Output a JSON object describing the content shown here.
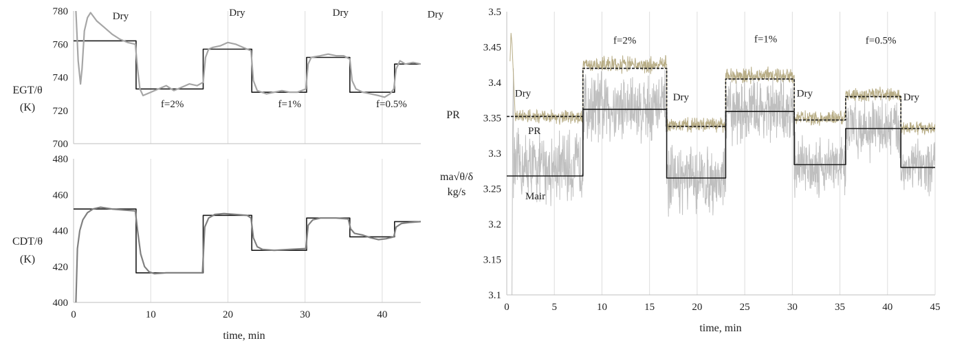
{
  "chart_data": [
    {
      "type": "line",
      "panel": "top-left",
      "ylabel": "EGT/θ",
      "ylabel_unit": "(K)",
      "xlim": [
        0,
        45
      ],
      "ylim": [
        700,
        780
      ],
      "yticks": [
        700,
        720,
        740,
        760,
        780
      ],
      "xticks": [],
      "grid": "vertical",
      "series": [
        {
          "role": "model-step",
          "color": "#1a1a1a",
          "x": [
            0,
            8.1,
            8.1,
            16.8,
            16.8,
            23.1,
            23.1,
            30.2,
            30.2,
            35.8,
            35.8,
            41.6,
            41.6,
            45
          ],
          "y": [
            762,
            762,
            733,
            733,
            757,
            757,
            731,
            731,
            752,
            752,
            731,
            731,
            748,
            748
          ]
        },
        {
          "role": "measured",
          "color": "#a6a6a6",
          "x": [
            0.3,
            0.6,
            0.9,
            1.1,
            1.4,
            1.8,
            2.2,
            3,
            4,
            5,
            6,
            7,
            8,
            8.3,
            8.6,
            9,
            10,
            11,
            12,
            13,
            14,
            15,
            16,
            16.8,
            17.1,
            17.5,
            18,
            19,
            20,
            21,
            22,
            23,
            23.3,
            23.8,
            25,
            26,
            27,
            28,
            29,
            30.1,
            30.4,
            30.8,
            32,
            33,
            34,
            35,
            35.8,
            36.1,
            36.6,
            37.5,
            38.5,
            39.5,
            40.3,
            41,
            41.5,
            41.8,
            42.3,
            43,
            44,
            45
          ],
          "y": [
            780,
            750,
            736,
            745,
            768,
            776,
            779,
            774,
            770,
            766,
            763,
            761,
            760,
            745,
            733,
            729,
            731,
            733,
            735,
            732,
            734,
            736,
            735,
            737,
            752,
            757,
            758,
            759,
            761,
            760,
            758,
            756,
            738,
            732,
            730,
            731,
            732,
            731,
            731,
            733,
            748,
            752,
            753,
            754,
            753,
            753,
            751,
            738,
            733,
            731,
            730,
            729,
            728,
            730,
            733,
            745,
            750,
            748,
            749,
            748
          ]
        }
      ],
      "annotations": [
        {
          "text": "Dry",
          "x": 6.1,
          "y": 775
        },
        {
          "text": "f=2%",
          "x": 12.8,
          "y": 722
        },
        {
          "text": "Dry",
          "x": 21.2,
          "y": 777
        },
        {
          "text": "f=1%",
          "x": 28.0,
          "y": 722
        },
        {
          "text": "Dry",
          "x": 34.6,
          "y": 777
        },
        {
          "text": "f=0.5%",
          "x": 41.2,
          "y": 722
        },
        {
          "text": "Dry",
          "x": 46.9,
          "y": 776
        }
      ]
    },
    {
      "type": "line",
      "panel": "bottom-left",
      "ylabel": "CDT/θ",
      "ylabel_unit": "(K)",
      "xlabel": "time, min",
      "xlim": [
        0,
        45
      ],
      "ylim": [
        400,
        480
      ],
      "yticks": [
        400,
        420,
        440,
        460,
        480
      ],
      "xticks": [
        0,
        10,
        20,
        30,
        40
      ],
      "grid": "vertical",
      "series": [
        {
          "role": "model-step",
          "color": "#1a1a1a",
          "x": [
            0,
            8.1,
            8.1,
            16.8,
            16.8,
            23.1,
            23.1,
            30.2,
            30.2,
            35.8,
            35.8,
            41.6,
            41.6,
            45
          ],
          "y": [
            452,
            452,
            416.5,
            416.5,
            448.5,
            448.5,
            429,
            429,
            447,
            447,
            436.5,
            436.5,
            445,
            445
          ]
        },
        {
          "role": "measured",
          "color": "#808080",
          "x": [
            0.3,
            0.5,
            0.8,
            1.2,
            1.8,
            2.5,
            3.5,
            5,
            6.5,
            8.0,
            8.3,
            8.7,
            9.2,
            9.8,
            10.5,
            12,
            14,
            16.7,
            17.0,
            17.5,
            18.3,
            19.5,
            21,
            22.5,
            23.0,
            23.3,
            23.8,
            24.5,
            26,
            28,
            30.1,
            30.4,
            31,
            32,
            34,
            35.6,
            35.9,
            36.4,
            37.5,
            38.5,
            39.5,
            40.5,
            41.5,
            41.8,
            42.5,
            43.5,
            45
          ],
          "y": [
            400,
            430,
            440,
            446,
            450,
            452,
            453,
            452,
            451.5,
            451,
            440,
            427,
            420,
            417,
            416,
            416.5,
            416.5,
            416.5,
            442,
            447,
            449,
            449.5,
            449,
            448.5,
            447,
            436,
            431,
            429.5,
            429,
            429.5,
            430,
            443,
            446,
            447,
            447,
            446.5,
            441,
            438.5,
            437.5,
            436,
            435,
            435.5,
            436.5,
            442,
            444,
            444.5,
            445
          ]
        }
      ]
    },
    {
      "type": "line",
      "panel": "right",
      "ylabel": "PR",
      "ylabel2": "ma√θ/δ",
      "ylabel2_unit": "kg/s",
      "xlabel": "time, min",
      "xlim": [
        0,
        45
      ],
      "ylim": [
        3.1,
        3.5
      ],
      "yticks": [
        3.1,
        3.15,
        3.2,
        3.25,
        3.3,
        3.35,
        3.4,
        3.45,
        3.5
      ],
      "xticks": [
        0,
        5,
        10,
        15,
        20,
        25,
        30,
        35,
        40,
        45
      ],
      "grid": "vertical",
      "series": [
        {
          "role": "PR-model",
          "color": "#1a1a1a",
          "dash": "4 2",
          "x": [
            0,
            8,
            8,
            16.8,
            16.8,
            23,
            23,
            30.2,
            30.2,
            35.6,
            35.6,
            41.4,
            41.4,
            45
          ],
          "y": [
            3.352,
            3.352,
            3.42,
            3.42,
            3.338,
            3.338,
            3.405,
            3.405,
            3.347,
            3.347,
            3.38,
            3.38,
            3.335,
            3.335
          ]
        },
        {
          "role": "Mair-model",
          "color": "#1a1a1a",
          "x": [
            0,
            8,
            8,
            16.8,
            16.8,
            23,
            23,
            30.2,
            30.2,
            35.6,
            35.6,
            41.4,
            41.4,
            45
          ],
          "y": [
            3.268,
            3.268,
            3.362,
            3.362,
            3.265,
            3.265,
            3.359,
            3.359,
            3.284,
            3.284,
            3.335,
            3.335,
            3.28,
            3.28
          ]
        }
      ],
      "noisy_series": [
        {
          "role": "Mair-measured",
          "color": "#bfbfbf",
          "segments": [
            {
              "from": 0.7,
              "to": 8,
              "mean": 3.28,
              "amp": 0.06
            },
            {
              "from": 8,
              "to": 16.8,
              "mean": 3.365,
              "amp": 0.06
            },
            {
              "from": 16.8,
              "to": 23,
              "mean": 3.262,
              "amp": 0.055
            },
            {
              "from": 23,
              "to": 30.2,
              "mean": 3.36,
              "amp": 0.055
            },
            {
              "from": 30.2,
              "to": 35.6,
              "mean": 3.283,
              "amp": 0.05
            },
            {
              "from": 35.6,
              "to": 41.4,
              "mean": 3.335,
              "amp": 0.05
            },
            {
              "from": 41.4,
              "to": 45,
              "mean": 3.28,
              "amp": 0.045
            }
          ]
        },
        {
          "role": "PR-measured",
          "color": "#b8ad86",
          "segments": [
            {
              "from": 0.9,
              "to": 8,
              "mean": 3.352,
              "amp": 0.012
            },
            {
              "from": 8,
              "to": 16.8,
              "mean": 3.425,
              "amp": 0.014
            },
            {
              "from": 16.8,
              "to": 23,
              "mean": 3.34,
              "amp": 0.012
            },
            {
              "from": 23,
              "to": 30.2,
              "mean": 3.41,
              "amp": 0.013
            },
            {
              "from": 30.2,
              "to": 35.6,
              "mean": 3.35,
              "amp": 0.012
            },
            {
              "from": 35.6,
              "to": 41.4,
              "mean": 3.383,
              "amp": 0.012
            },
            {
              "from": 41.4,
              "to": 45,
              "mean": 3.336,
              "amp": 0.011
            }
          ]
        }
      ],
      "annotations": [
        {
          "text": "f=2%",
          "x": 12.4,
          "y": 3.455
        },
        {
          "text": "f=1%",
          "x": 27.2,
          "y": 3.457
        },
        {
          "text": "f=0.5%",
          "x": 39.3,
          "y": 3.455
        },
        {
          "text": "Dry",
          "x": 1.7,
          "y": 3.38
        },
        {
          "text": "Dry",
          "x": 18.3,
          "y": 3.375
        },
        {
          "text": "Dry",
          "x": 31.3,
          "y": 3.38
        },
        {
          "text": "Dry",
          "x": 42.5,
          "y": 3.375
        },
        {
          "text": "PR",
          "x": 2.9,
          "y": 3.327
        },
        {
          "text": "Mair",
          "x": 3.0,
          "y": 3.235
        }
      ]
    }
  ]
}
